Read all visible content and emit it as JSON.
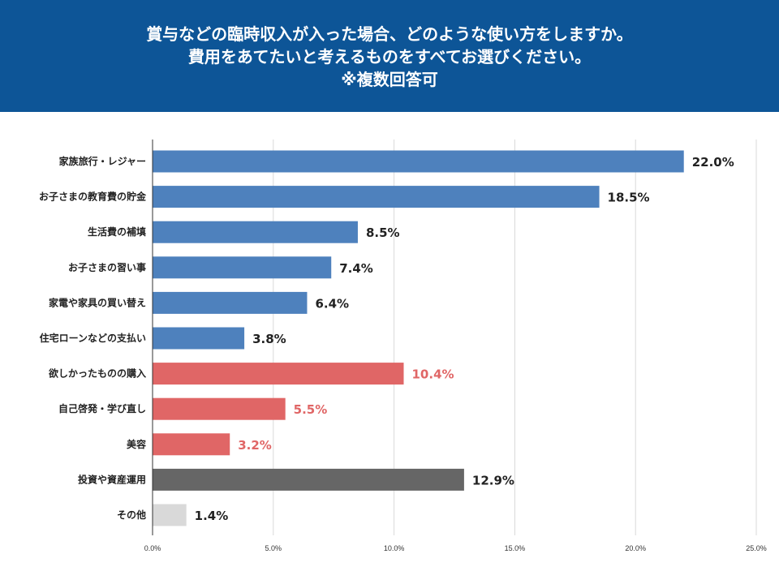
{
  "title": {
    "line1": "賞与などの臨時収入が入った場合、どのような使い方をしますか。",
    "line2": "費用をあてたいと考えるものをすべてお選びください。",
    "line3": "※複数回答可"
  },
  "colors": {
    "header_bg": "#0d5597",
    "blue": "#4e81bd",
    "red": "#e06666",
    "gray": "#666666",
    "lightgray": "#d9d9d9",
    "grid": "#d9d9d9"
  },
  "chart_data": {
    "type": "bar",
    "orientation": "horizontal",
    "categories": [
      "家族旅行・レジャー",
      "お子さまの教育費の貯金",
      "生活費の補填",
      "お子さまの習い事",
      "家電や家具の買い替え",
      "住宅ローンなどの支払い",
      "欲しかったものの購入",
      "自己啓発・学び直し",
      "美容",
      "投資や資産運用",
      "その他"
    ],
    "values": [
      22.0,
      18.5,
      8.5,
      7.4,
      6.4,
      3.8,
      10.4,
      5.5,
      3.2,
      12.9,
      1.4
    ],
    "value_labels": [
      "22.0%",
      "18.5%",
      "8.5%",
      "7.4%",
      "6.4%",
      "3.8%",
      "10.4%",
      "5.5%",
      "3.2%",
      "12.9%",
      "1.4%"
    ],
    "bar_colors": [
      "blue",
      "blue",
      "blue",
      "blue",
      "blue",
      "blue",
      "red",
      "red",
      "red",
      "gray",
      "lightgray"
    ],
    "label_colors": [
      "#222222",
      "#222222",
      "#222222",
      "#222222",
      "#222222",
      "#222222",
      "#e06666",
      "#e06666",
      "#e06666",
      "#222222",
      "#222222"
    ],
    "xlim": [
      0,
      25
    ],
    "x_ticks": [
      0,
      5,
      10,
      15,
      20,
      25
    ],
    "x_tick_labels": [
      "0.0%",
      "5.0%",
      "10.0%",
      "15.0%",
      "20.0%",
      "25.0%"
    ],
    "grid": true
  }
}
